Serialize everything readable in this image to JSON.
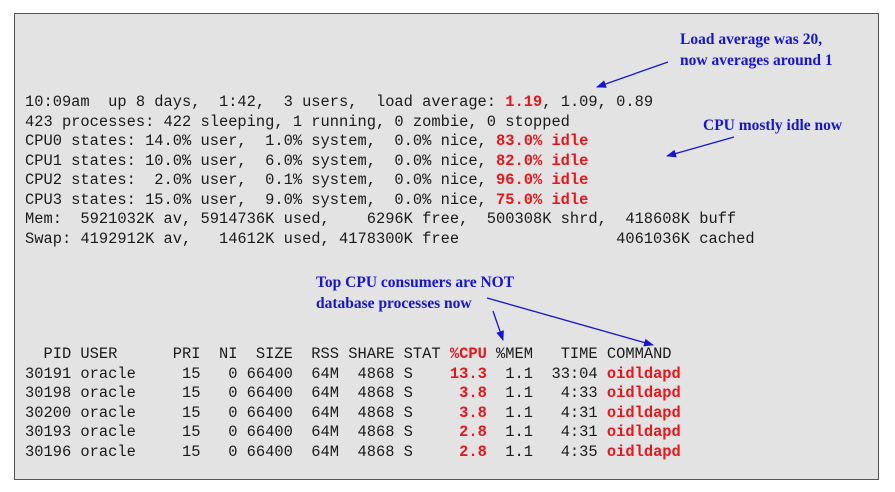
{
  "summary": {
    "uptime_prefix": "10:09am  up 8 days,  1:42,  3 users,  load average: ",
    "load_1min": "1.19",
    "load_rest": ", 1.09, 0.89",
    "processes": "423 processes: 422 sleeping, 1 running, 0 zombie, 0 stopped",
    "cpus": [
      {
        "prefix": "CPU0 states: 14.0% user,  1.0% system,  0.0% nice, ",
        "idle": "83.0% idle"
      },
      {
        "prefix": "CPU1 states: 10.0% user,  6.0% system,  0.0% nice, ",
        "idle": "82.0% idle"
      },
      {
        "prefix": "CPU2 states:  2.0% user,  0.1% system,  0.0% nice, ",
        "idle": "96.0% idle"
      },
      {
        "prefix": "CPU3 states: 15.0% user,  9.0% system,  0.0% nice, ",
        "idle": "75.0% idle"
      }
    ],
    "mem": "Mem:  5921032K av, 5914736K used,    6296K free,  500308K shrd,  418608K buff",
    "swap": "Swap: 4192912K av,   14612K used, 4178300K free                 4061036K cached"
  },
  "process_table": {
    "header_prefix": "  PID USER      PRI  NI  SIZE  RSS SHARE STAT ",
    "header_cpu": "%CPU",
    "header_mid": " %MEM   TIME ",
    "header_command": "COMMAND",
    "rows": [
      {
        "prefix": "30191 oracle     15   0 66400  64M  4868 S    ",
        "cpu": "13.3",
        "mid": "  1.1  33:04 ",
        "command": "oidldapd"
      },
      {
        "prefix": "30198 oracle     15   0 66400  64M  4868 S    ",
        "cpu": " 3.8",
        "mid": "  1.1   4:33 ",
        "command": "oidldapd"
      },
      {
        "prefix": "30200 oracle     15   0 66400  64M  4868 S    ",
        "cpu": " 3.8",
        "mid": "  1.1   4:31 ",
        "command": "oidldapd"
      },
      {
        "prefix": "30193 oracle     15   0 66400  64M  4868 S    ",
        "cpu": " 2.8",
        "mid": "  1.1   4:31 ",
        "command": "oidldapd"
      },
      {
        "prefix": "30196 oracle     15   0 66400  64M  4868 S    ",
        "cpu": " 2.8",
        "mid": "  1.1   4:35 ",
        "command": "oidldapd"
      }
    ]
  },
  "annotations": {
    "load": "Load average was 20,\nnow averages around 1",
    "cpu_idle": "CPU mostly idle now",
    "top_cpu": "Top CPU consumers are NOT\ndatabase processes now"
  },
  "colors": {
    "highlight_red": "#e8161a",
    "annotation_blue": "#1515d8",
    "terminal_bg": "#e3e3e3"
  }
}
